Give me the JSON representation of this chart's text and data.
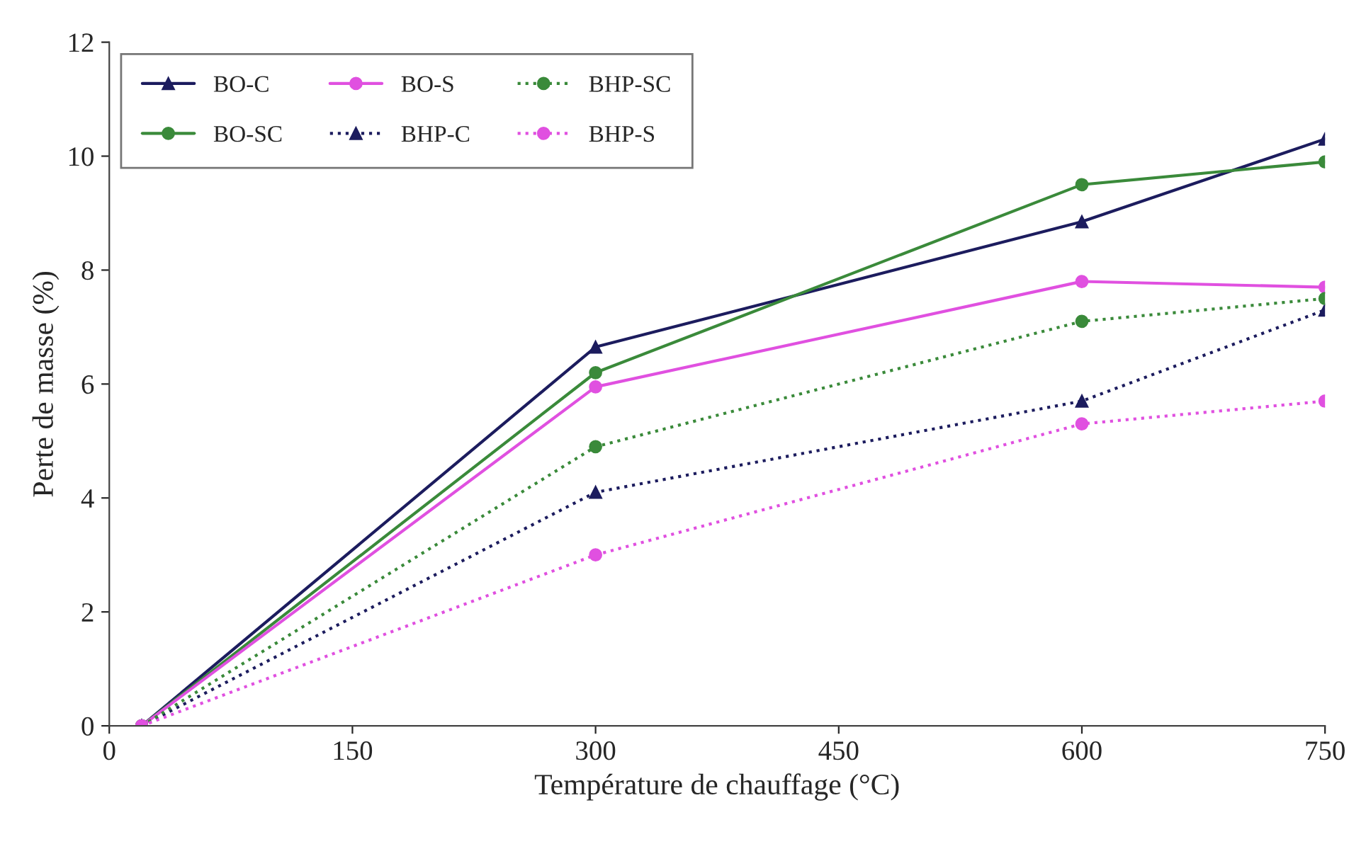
{
  "chart_data": {
    "type": "line",
    "xlabel": "Température de chauffage (°C)",
    "ylabel": "Perte de masse (%)",
    "x": [
      20,
      300,
      600,
      750
    ],
    "series": [
      {
        "name": "BO-C",
        "color": "#1c1c5e",
        "marker": "triangle",
        "line_style": "solid",
        "values": [
          0,
          6.65,
          8.85,
          10.3
        ]
      },
      {
        "name": "BO-SC",
        "color": "#3a8a3a",
        "marker": "circle",
        "line_style": "solid",
        "values": [
          0,
          6.2,
          9.5,
          9.9
        ]
      },
      {
        "name": "BO-S",
        "color": "#e050e0",
        "marker": "circle",
        "line_style": "solid",
        "values": [
          0,
          5.95,
          7.8,
          7.7
        ]
      },
      {
        "name": "BHP-C",
        "color": "#1c1c5e",
        "marker": "triangle",
        "line_style": "dotted",
        "values": [
          0,
          4.1,
          5.7,
          7.3
        ]
      },
      {
        "name": "BHP-SC",
        "color": "#3a8a3a",
        "marker": "circle",
        "line_style": "dotted",
        "values": [
          0,
          4.9,
          7.1,
          7.5
        ]
      },
      {
        "name": "BHP-S",
        "color": "#e050e0",
        "marker": "circle",
        "line_style": "dotted",
        "values": [
          0,
          3.0,
          5.3,
          5.7
        ]
      }
    ],
    "xlim": [
      0,
      750
    ],
    "xticks": [
      0,
      150,
      300,
      450,
      600,
      750
    ],
    "ylim": [
      0,
      12
    ],
    "yticks": [
      0,
      2,
      4,
      6,
      8,
      10,
      12
    ],
    "grid": false,
    "legend": "top left"
  }
}
